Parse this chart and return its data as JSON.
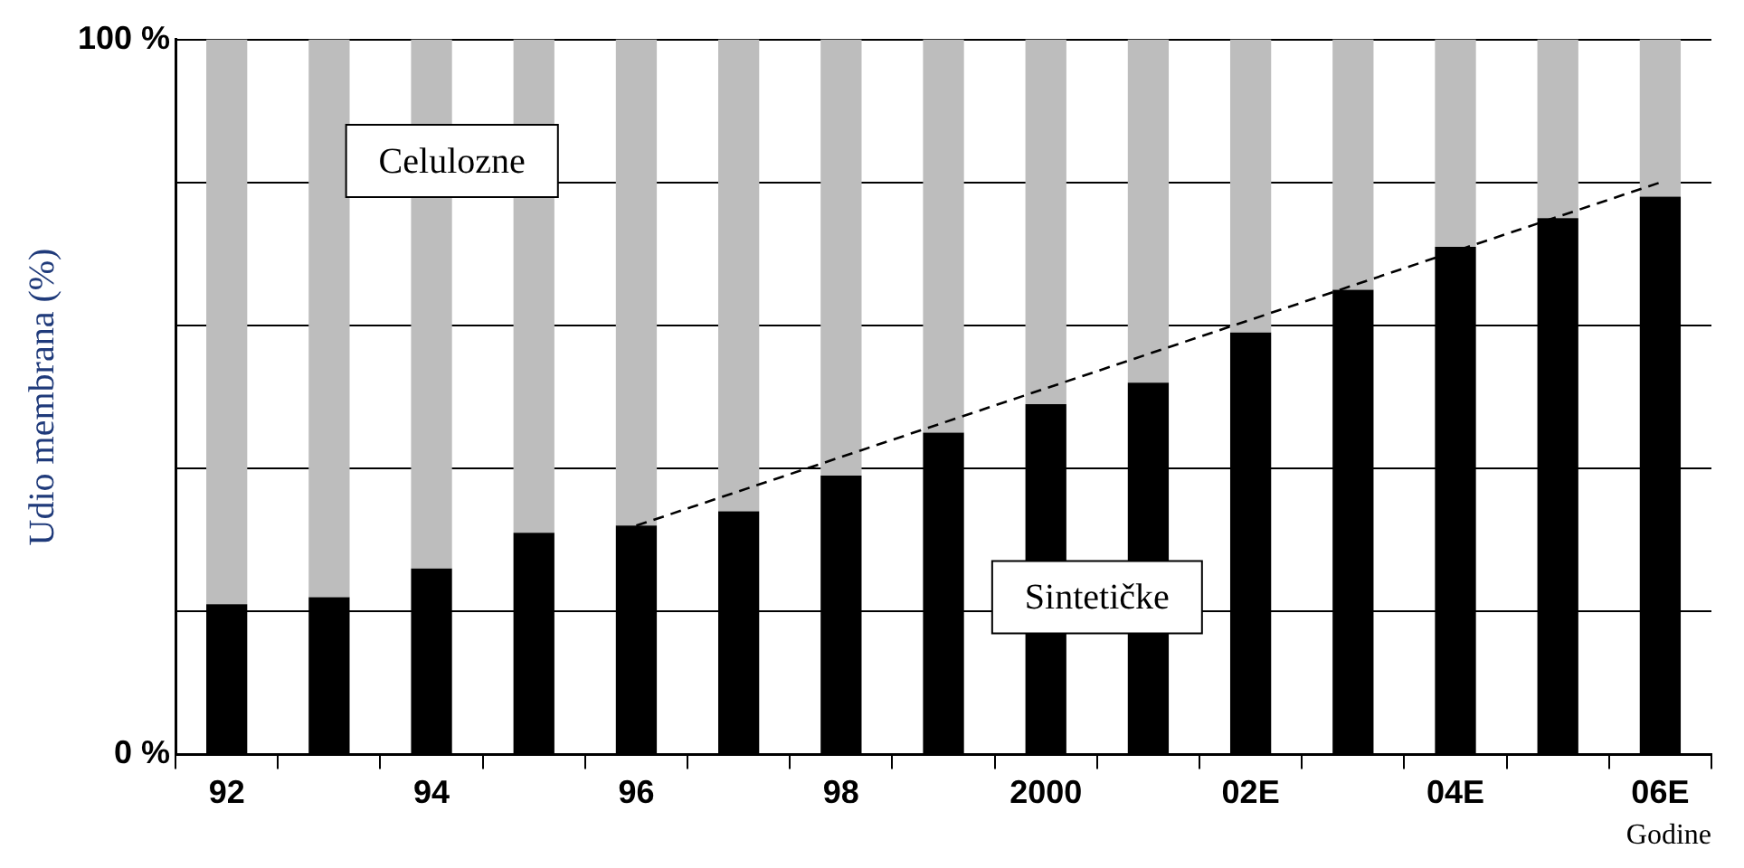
{
  "chart_data": {
    "type": "bar",
    "stacked": true,
    "xlabel": "Godine",
    "ylabel": "Udio membrana (%)",
    "categories": [
      "92",
      null,
      "94",
      null,
      "96",
      null,
      "98",
      null,
      "2000",
      null,
      "02E",
      null,
      "04E",
      null,
      "06E"
    ],
    "series": [
      {
        "name": "Sintetičke",
        "color": "#000000",
        "values": [
          21,
          22,
          26,
          31,
          32,
          34,
          39,
          45,
          49,
          52,
          59,
          65,
          71,
          75,
          78
        ]
      },
      {
        "name": "Celulozne",
        "color": "#bdbdbd",
        "values": [
          79,
          78,
          74,
          69,
          68,
          66,
          61,
          55,
          51,
          48,
          41,
          35,
          29,
          25,
          22
        ]
      },
      {
        "type": "line",
        "color": "#000000",
        "line_style": "dashed",
        "marker": "none",
        "x": [
          "96",
          "06E"
        ],
        "values": [
          32,
          80
        ]
      }
    ],
    "ylim": [
      0,
      100
    ],
    "yticks": [
      {
        "value": 0,
        "label": "0 %"
      },
      {
        "value": 20,
        "label": null
      },
      {
        "value": 40,
        "label": null
      },
      {
        "value": 60,
        "label": null
      },
      {
        "value": 80,
        "label": null
      },
      {
        "value": 100,
        "label": "100 %"
      }
    ],
    "grid": "y",
    "legend": false
  }
}
